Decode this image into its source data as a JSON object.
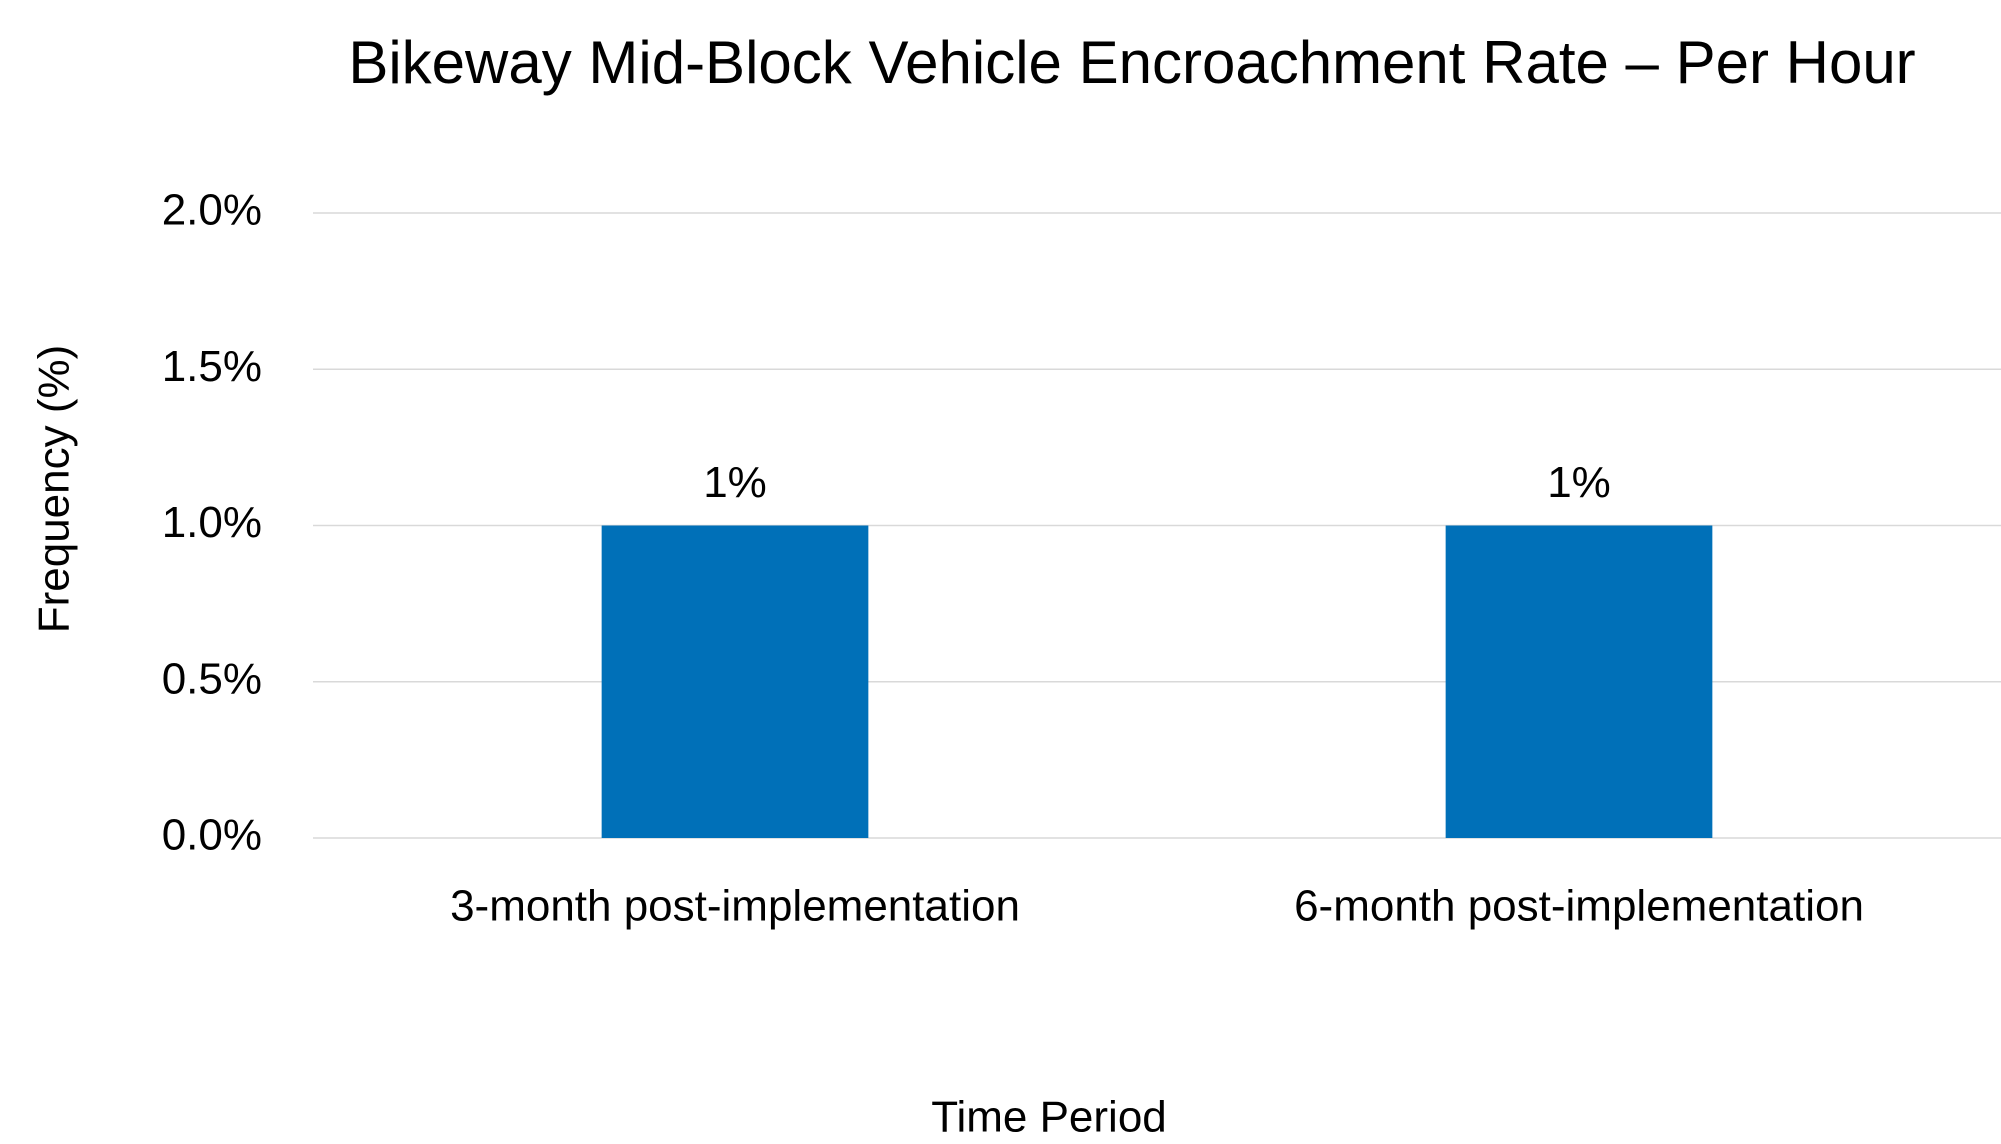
{
  "chart_data": {
    "type": "bar",
    "title": "Bikeway Mid-Block Vehicle Encroachment Rate – Per Hour",
    "x_label": "Time Period",
    "y_label": "Frequency (%)",
    "categories": [
      "3-month post-implementation",
      "6-month post-implementation"
    ],
    "values": [
      1,
      1
    ],
    "value_labels": [
      "1%",
      "1%"
    ],
    "color": "#0070b8",
    "ylim": [
      0,
      2
    ],
    "yticks": [
      {
        "value": 0,
        "label": "0.0%"
      },
      {
        "value": 0.5,
        "label": "0.5%"
      },
      {
        "value": 1,
        "label": "1.0%"
      },
      {
        "value": 1.5,
        "label": "1.5%"
      },
      {
        "value": 2,
        "label": "2.0%"
      }
    ],
    "grid": true
  }
}
